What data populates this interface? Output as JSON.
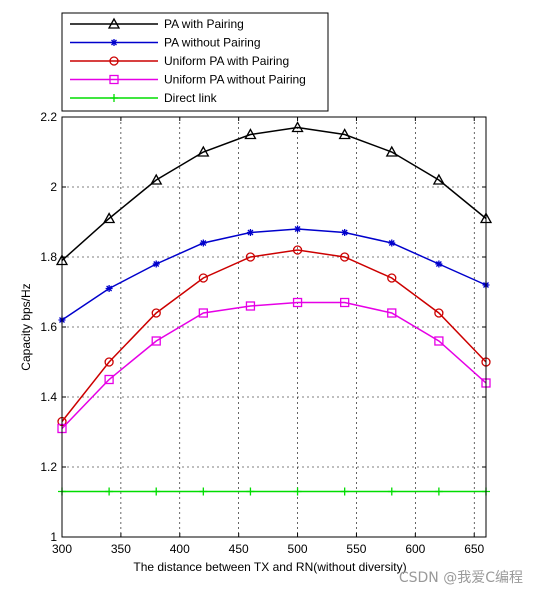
{
  "chart_data": {
    "type": "line",
    "xlabel": "The distance between TX and RN(without diversity)",
    "ylabel": "Capacity bps/Hz",
    "xlim": [
      300,
      660
    ],
    "ylim": [
      1,
      2.2
    ],
    "xticks": [
      300,
      350,
      400,
      450,
      500,
      550,
      600,
      650
    ],
    "xtick_labels": [
      "300",
      "350",
      "400",
      "450",
      "500",
      "550",
      "600",
      "650"
    ],
    "yticks": [
      1,
      1.2,
      1.4,
      1.6,
      1.8,
      2,
      2.2
    ],
    "ytick_labels": [
      "1",
      "1.2",
      "1.4",
      "1.6",
      "1.8",
      "2",
      "2.2"
    ],
    "grid": true,
    "legend_position": "top",
    "x": [
      300,
      340,
      380,
      420,
      460,
      500,
      540,
      580,
      620,
      660
    ],
    "series": [
      {
        "name": "PA with Pairing",
        "color": "#000000",
        "marker": "triangle",
        "values": [
          1.79,
          1.91,
          2.02,
          2.1,
          2.15,
          2.17,
          2.15,
          2.1,
          2.02,
          1.91
        ]
      },
      {
        "name": "PA without Pairing",
        "color": "#0000cc",
        "marker": "star",
        "values": [
          1.62,
          1.71,
          1.78,
          1.84,
          1.87,
          1.88,
          1.87,
          1.84,
          1.78,
          1.72
        ]
      },
      {
        "name": "Uniform PA with Pairing",
        "color": "#cc0000",
        "marker": "circle",
        "values": [
          1.33,
          1.5,
          1.64,
          1.74,
          1.8,
          1.82,
          1.8,
          1.74,
          1.64,
          1.5
        ]
      },
      {
        "name": "Uniform PA without Pairing",
        "color": "#e600e6",
        "marker": "square",
        "values": [
          1.31,
          1.45,
          1.56,
          1.64,
          1.66,
          1.67,
          1.67,
          1.64,
          1.56,
          1.44
        ]
      },
      {
        "name": "Direct link",
        "color": "#00dd00",
        "marker": "plus",
        "values": [
          1.13,
          1.13,
          1.13,
          1.13,
          1.13,
          1.13,
          1.13,
          1.13,
          1.13,
          1.13
        ]
      }
    ]
  },
  "watermark": "CSDN @我爱C编程"
}
